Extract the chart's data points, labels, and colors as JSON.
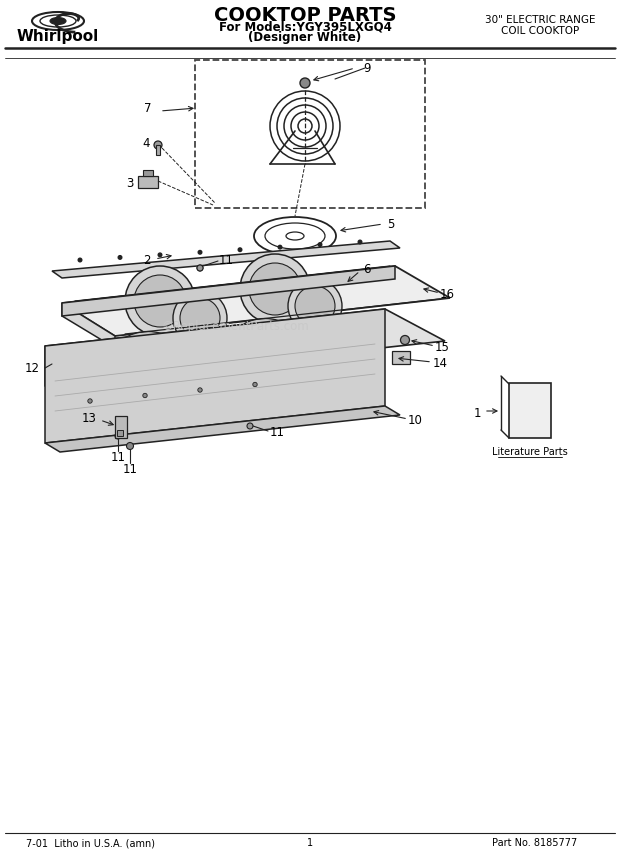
{
  "title": "COOKTOP PARTS",
  "subtitle1": "For Models:YGY395LXGQ4",
  "subtitle2": "(Designer White)",
  "right_header1": "30\" ELECTRIC RANGE",
  "right_header2": "COIL COOKTOP",
  "footer_left": "7-01  Litho in U.S.A. (amn)",
  "footer_center": "1",
  "footer_right": "Part No. 8185777",
  "watermark": "©ReplacementParts.com",
  "bg_color": "#ffffff",
  "line_color": "#222222",
  "label_color": "#000000",
  "fig_width": 6.2,
  "fig_height": 8.56,
  "dpi": 100
}
